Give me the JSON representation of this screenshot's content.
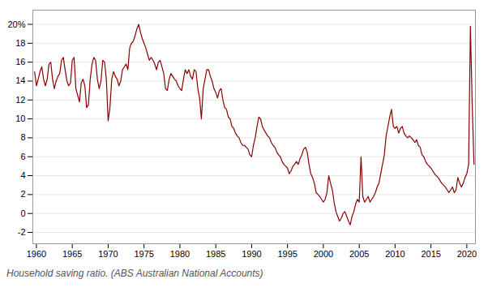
{
  "chart_data": {
    "type": "line",
    "caption": "Household saving ratio. (ABS Australian National Accounts)",
    "color": "#8B0000",
    "grid": true,
    "xlim": [
      1959.5,
      2021.2
    ],
    "ylim": [
      -3.2,
      21.5
    ],
    "xticks": [
      1960,
      1965,
      1970,
      1975,
      1980,
      1985,
      1990,
      1995,
      2000,
      2005,
      2010,
      2015,
      2020
    ],
    "yticks": [
      -2,
      0,
      2,
      4,
      6,
      8,
      10,
      12,
      14,
      16,
      18,
      {
        "value": 20,
        "label": "20%"
      }
    ],
    "x": [
      1959.75,
      1960.0,
      1960.25,
      1960.5,
      1960.75,
      1961.0,
      1961.25,
      1961.5,
      1961.75,
      1962.0,
      1962.25,
      1962.5,
      1962.75,
      1963.0,
      1963.25,
      1963.5,
      1963.75,
      1964.0,
      1964.25,
      1964.5,
      1964.75,
      1965.0,
      1965.25,
      1965.5,
      1965.75,
      1966.0,
      1966.25,
      1966.5,
      1966.75,
      1967.0,
      1967.25,
      1967.5,
      1967.75,
      1968.0,
      1968.25,
      1968.5,
      1968.75,
      1969.0,
      1969.25,
      1969.5,
      1969.75,
      1970.0,
      1970.25,
      1970.5,
      1970.75,
      1971.0,
      1971.25,
      1971.5,
      1971.75,
      1972.0,
      1972.25,
      1972.5,
      1972.75,
      1973.0,
      1973.25,
      1973.5,
      1973.75,
      1974.0,
      1974.25,
      1974.5,
      1974.75,
      1975.0,
      1975.25,
      1975.5,
      1975.75,
      1976.0,
      1976.25,
      1976.5,
      1976.75,
      1977.0,
      1977.25,
      1977.5,
      1977.75,
      1978.0,
      1978.25,
      1978.5,
      1978.75,
      1979.0,
      1979.25,
      1979.5,
      1979.75,
      1980.0,
      1980.25,
      1980.5,
      1980.75,
      1981.0,
      1981.25,
      1981.5,
      1981.75,
      1982.0,
      1982.25,
      1982.5,
      1982.75,
      1983.0,
      1983.25,
      1983.5,
      1983.75,
      1984.0,
      1984.25,
      1984.5,
      1984.75,
      1985.0,
      1985.25,
      1985.5,
      1985.75,
      1986.0,
      1986.25,
      1986.5,
      1986.75,
      1987.0,
      1987.25,
      1987.5,
      1987.75,
      1988.0,
      1988.25,
      1988.5,
      1988.75,
      1989.0,
      1989.25,
      1989.5,
      1989.75,
      1990.0,
      1990.25,
      1990.5,
      1990.75,
      1991.0,
      1991.25,
      1991.5,
      1991.75,
      1992.0,
      1992.25,
      1992.5,
      1992.75,
      1993.0,
      1993.25,
      1993.5,
      1993.75,
      1994.0,
      1994.25,
      1994.5,
      1994.75,
      1995.0,
      1995.25,
      1995.5,
      1995.75,
      1996.0,
      1996.25,
      1996.5,
      1996.75,
      1997.0,
      1997.25,
      1997.5,
      1997.75,
      1998.0,
      1998.25,
      1998.5,
      1998.75,
      1999.0,
      1999.25,
      1999.5,
      1999.75,
      2000.0,
      2000.25,
      2000.5,
      2000.75,
      2001.0,
      2001.25,
      2001.5,
      2001.75,
      2002.0,
      2002.25,
      2002.5,
      2002.75,
      2003.0,
      2003.25,
      2003.5,
      2003.75,
      2004.0,
      2004.25,
      2004.5,
      2004.75,
      2005.0,
      2005.25,
      2005.5,
      2005.75,
      2006.0,
      2006.25,
      2006.5,
      2006.75,
      2007.0,
      2007.25,
      2007.5,
      2007.75,
      2008.0,
      2008.25,
      2008.5,
      2008.75,
      2009.0,
      2009.25,
      2009.5,
      2009.75,
      2010.0,
      2010.25,
      2010.5,
      2010.75,
      2011.0,
      2011.25,
      2011.5,
      2011.75,
      2012.0,
      2012.25,
      2012.5,
      2012.75,
      2013.0,
      2013.25,
      2013.5,
      2013.75,
      2014.0,
      2014.25,
      2014.5,
      2014.75,
      2015.0,
      2015.25,
      2015.5,
      2015.75,
      2016.0,
      2016.25,
      2016.5,
      2016.75,
      2017.0,
      2017.25,
      2017.5,
      2017.75,
      2018.0,
      2018.25,
      2018.5,
      2018.75,
      2019.0,
      2019.25,
      2019.5,
      2019.75,
      2020.0,
      2020.25,
      2020.5,
      2020.75,
      2021.0
    ],
    "values": [
      15.0,
      13.5,
      14.2,
      15.0,
      15.5,
      14.2,
      13.5,
      14.2,
      15.8,
      16.0,
      14.2,
      13.2,
      14.0,
      14.5,
      14.8,
      16.2,
      16.5,
      15.2,
      14.0,
      13.5,
      13.8,
      16.2,
      16.5,
      13.2,
      12.5,
      11.8,
      13.8,
      14.2,
      13.5,
      11.2,
      11.5,
      14.2,
      15.8,
      16.5,
      16.2,
      14.2,
      13.2,
      14.0,
      16.2,
      16.0,
      14.2,
      9.8,
      11.2,
      14.2,
      15.0,
      14.5,
      14.2,
      13.5,
      14.0,
      15.2,
      15.5,
      15.8,
      15.2,
      17.5,
      18.0,
      18.2,
      18.8,
      19.5,
      20.0,
      19.2,
      18.5,
      18.0,
      17.5,
      16.8,
      16.2,
      16.5,
      16.2,
      15.8,
      15.2,
      16.0,
      16.2,
      15.5,
      14.8,
      13.2,
      13.0,
      14.2,
      14.8,
      14.5,
      14.2,
      14.0,
      13.5,
      13.2,
      13.0,
      14.2,
      15.2,
      14.8,
      15.2,
      14.5,
      14.2,
      15.2,
      15.0,
      13.2,
      12.2,
      10.0,
      13.2,
      14.2,
      15.2,
      15.2,
      14.5,
      14.0,
      13.2,
      12.8,
      12.2,
      13.0,
      13.2,
      12.0,
      11.2,
      11.0,
      10.2,
      10.0,
      9.2,
      9.0,
      8.5,
      8.2,
      8.0,
      7.5,
      7.2,
      7.2,
      7.0,
      6.8,
      6.2,
      6.0,
      7.2,
      8.0,
      9.2,
      10.2,
      10.0,
      9.2,
      8.8,
      8.5,
      8.2,
      8.0,
      7.5,
      7.2,
      7.0,
      6.5,
      6.2,
      6.0,
      5.5,
      5.2,
      5.0,
      4.8,
      4.2,
      4.5,
      5.0,
      5.2,
      5.5,
      5.2,
      5.8,
      6.2,
      6.8,
      7.0,
      6.5,
      5.2,
      4.2,
      3.8,
      3.2,
      2.2,
      2.0,
      1.8,
      1.5,
      1.2,
      1.5,
      2.2,
      4.0,
      3.2,
      2.5,
      1.2,
      0.2,
      -0.3,
      -0.8,
      -0.5,
      0.0,
      0.2,
      -0.3,
      -0.8,
      -1.2,
      -0.3,
      0.2,
      1.0,
      1.5,
      1.2,
      6.0,
      1.8,
      1.2,
      1.5,
      1.8,
      1.2,
      1.5,
      1.8,
      2.2,
      2.8,
      3.2,
      4.2,
      5.2,
      6.2,
      8.2,
      9.2,
      10.2,
      11.0,
      9.2,
      9.0,
      9.2,
      8.5,
      9.0,
      9.2,
      8.5,
      8.2,
      8.0,
      8.2,
      8.0,
      7.8,
      7.5,
      7.8,
      7.2,
      7.0,
      6.2,
      6.0,
      5.5,
      5.2,
      5.0,
      4.8,
      4.5,
      4.2,
      4.0,
      3.8,
      3.5,
      3.2,
      3.0,
      2.8,
      2.5,
      2.2,
      2.5,
      2.8,
      2.2,
      2.5,
      3.8,
      3.2,
      2.8,
      3.2,
      3.8,
      4.2,
      5.2,
      19.8,
      11.5,
      5.2
    ]
  }
}
